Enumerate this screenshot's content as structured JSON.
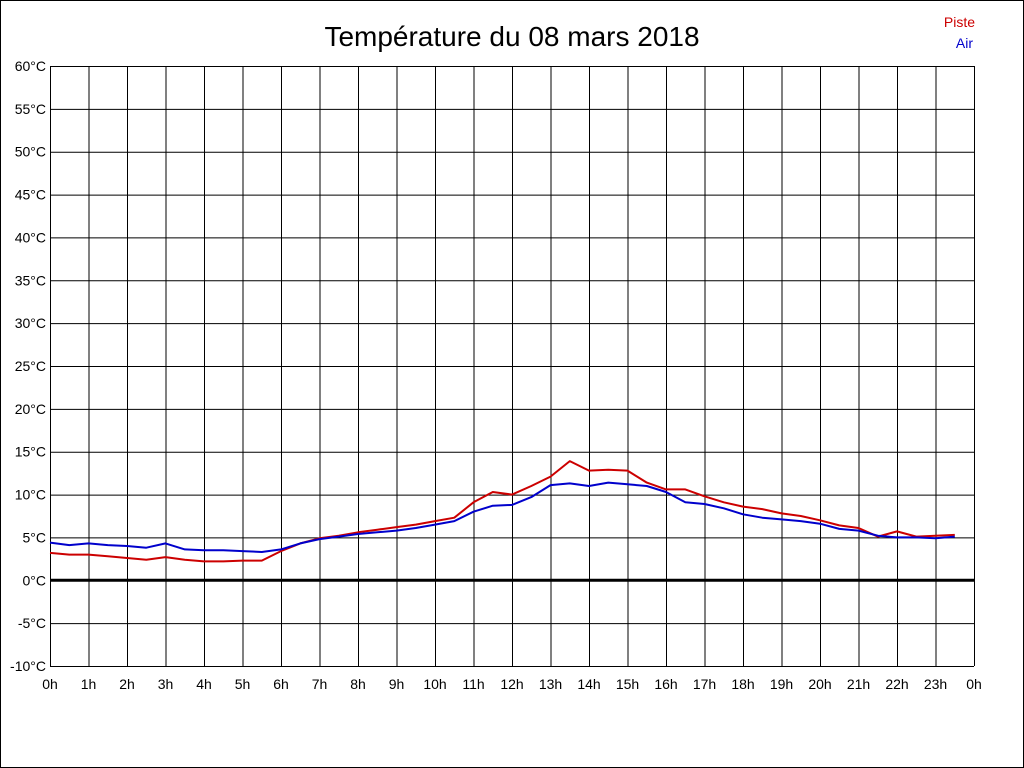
{
  "chart_data": {
    "type": "line",
    "title": "Température du 08 mars 2018",
    "x_ticks": [
      "0h",
      "1h",
      "2h",
      "3h",
      "4h",
      "5h",
      "6h",
      "7h",
      "8h",
      "9h",
      "10h",
      "11h",
      "12h",
      "13h",
      "14h",
      "15h",
      "16h",
      "17h",
      "18h",
      "19h",
      "20h",
      "21h",
      "22h",
      "23h",
      "0h"
    ],
    "y_ticks": [
      "60°C",
      "55°C",
      "50°C",
      "45°C",
      "40°C",
      "35°C",
      "30°C",
      "25°C",
      "20°C",
      "15°C",
      "10°C",
      "5°C",
      "0°C",
      "-5°C",
      "-10°C"
    ],
    "xlim": [
      0,
      24
    ],
    "ylim": [
      -10,
      60
    ],
    "grid": true,
    "legend_position": "top-right",
    "zero_line": true,
    "colors": {
      "Piste": "#cc0000",
      "Air": "#0000cc"
    },
    "x": [
      0,
      0.5,
      1,
      1.5,
      2,
      2.5,
      3,
      3.5,
      4,
      4.5,
      5,
      5.5,
      6,
      6.5,
      7,
      7.5,
      8,
      8.5,
      9,
      9.5,
      10,
      10.5,
      11,
      11.5,
      12,
      12.5,
      13,
      13.5,
      14,
      14.5,
      15,
      15.5,
      16,
      16.5,
      17,
      17.5,
      18,
      18.5,
      19,
      19.5,
      20,
      20.5,
      21,
      21.5,
      22,
      22.5,
      23,
      23.5
    ],
    "series": [
      {
        "name": "Piste",
        "values": [
          3.2,
          3.0,
          3.0,
          2.8,
          2.6,
          2.4,
          2.7,
          2.4,
          2.2,
          2.2,
          2.3,
          2.3,
          3.4,
          4.3,
          4.9,
          5.2,
          5.6,
          5.9,
          6.2,
          6.5,
          6.9,
          7.3,
          9.1,
          10.3,
          10.0,
          11.0,
          12.1,
          13.9,
          12.8,
          12.9,
          12.8,
          11.4,
          10.6,
          10.6,
          9.8,
          9.1,
          8.6,
          8.3,
          7.8,
          7.5,
          7.0,
          6.4,
          6.1,
          5.1,
          5.7,
          5.1,
          5.2,
          5.3
        ]
      },
      {
        "name": "Air",
        "values": [
          4.4,
          4.1,
          4.3,
          4.1,
          4.0,
          3.8,
          4.3,
          3.6,
          3.5,
          3.5,
          3.4,
          3.3,
          3.6,
          4.3,
          4.8,
          5.1,
          5.4,
          5.6,
          5.8,
          6.1,
          6.5,
          6.9,
          8.0,
          8.7,
          8.8,
          9.7,
          11.1,
          11.3,
          11.0,
          11.4,
          11.2,
          11.0,
          10.3,
          9.1,
          8.9,
          8.4,
          7.7,
          7.3,
          7.1,
          6.9,
          6.6,
          6.0,
          5.8,
          5.2,
          5.0,
          5.0,
          4.9,
          5.1
        ]
      }
    ]
  }
}
